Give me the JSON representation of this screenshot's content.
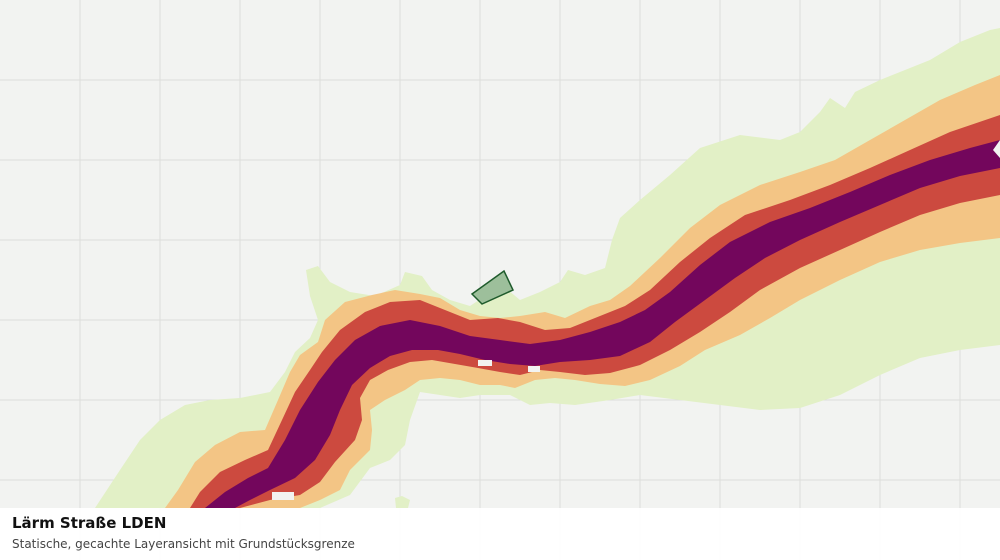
{
  "map": {
    "title": "Lärm Straße LDEN",
    "subtitle": "Statische, gecachte Layeransicht mit Grundstücksgrenze",
    "colors": {
      "background": "#f2f3f1",
      "grid": "#dcdedb",
      "band_light": "#e2f0c6",
      "band_orange": "#f3c585",
      "band_red": "#cc4a3f",
      "band_core": "#73065c",
      "parcel_fill": "#9dbf9b",
      "parcel_stroke": "#1f5b2c"
    }
  }
}
